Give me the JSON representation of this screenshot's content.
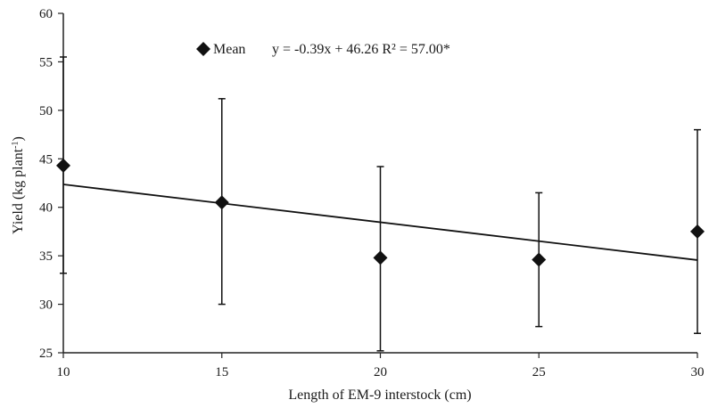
{
  "chart_data": {
    "type": "scatter",
    "x": [
      10,
      15,
      20,
      25,
      30
    ],
    "series": [
      {
        "name": "Mean",
        "values": [
          44.3,
          40.5,
          34.8,
          34.6,
          37.5
        ],
        "error_low": [
          33.2,
          30.0,
          25.2,
          27.7,
          27.0
        ],
        "error_high": [
          55.5,
          51.2,
          44.2,
          41.5,
          48.0
        ],
        "marker": "diamond",
        "color": "#111111"
      }
    ],
    "trendline": {
      "type": "linear",
      "slope": -0.39,
      "intercept": 46.26,
      "equation": "y = -0.39x + 46.26 R² = 57.00*"
    },
    "xlabel": "Length of EM-9 interstock (cm)",
    "ylabel_main": "Yield (kg plant",
    "ylabel_sup": "-1",
    "ylabel_end": ")",
    "xlim": [
      10,
      30
    ],
    "ylim": [
      25,
      60
    ],
    "xticks": [
      10,
      15,
      20,
      25,
      30
    ],
    "yticks": [
      25,
      30,
      35,
      40,
      45,
      50,
      55,
      60
    ],
    "grid": false,
    "legend_position": "top"
  }
}
